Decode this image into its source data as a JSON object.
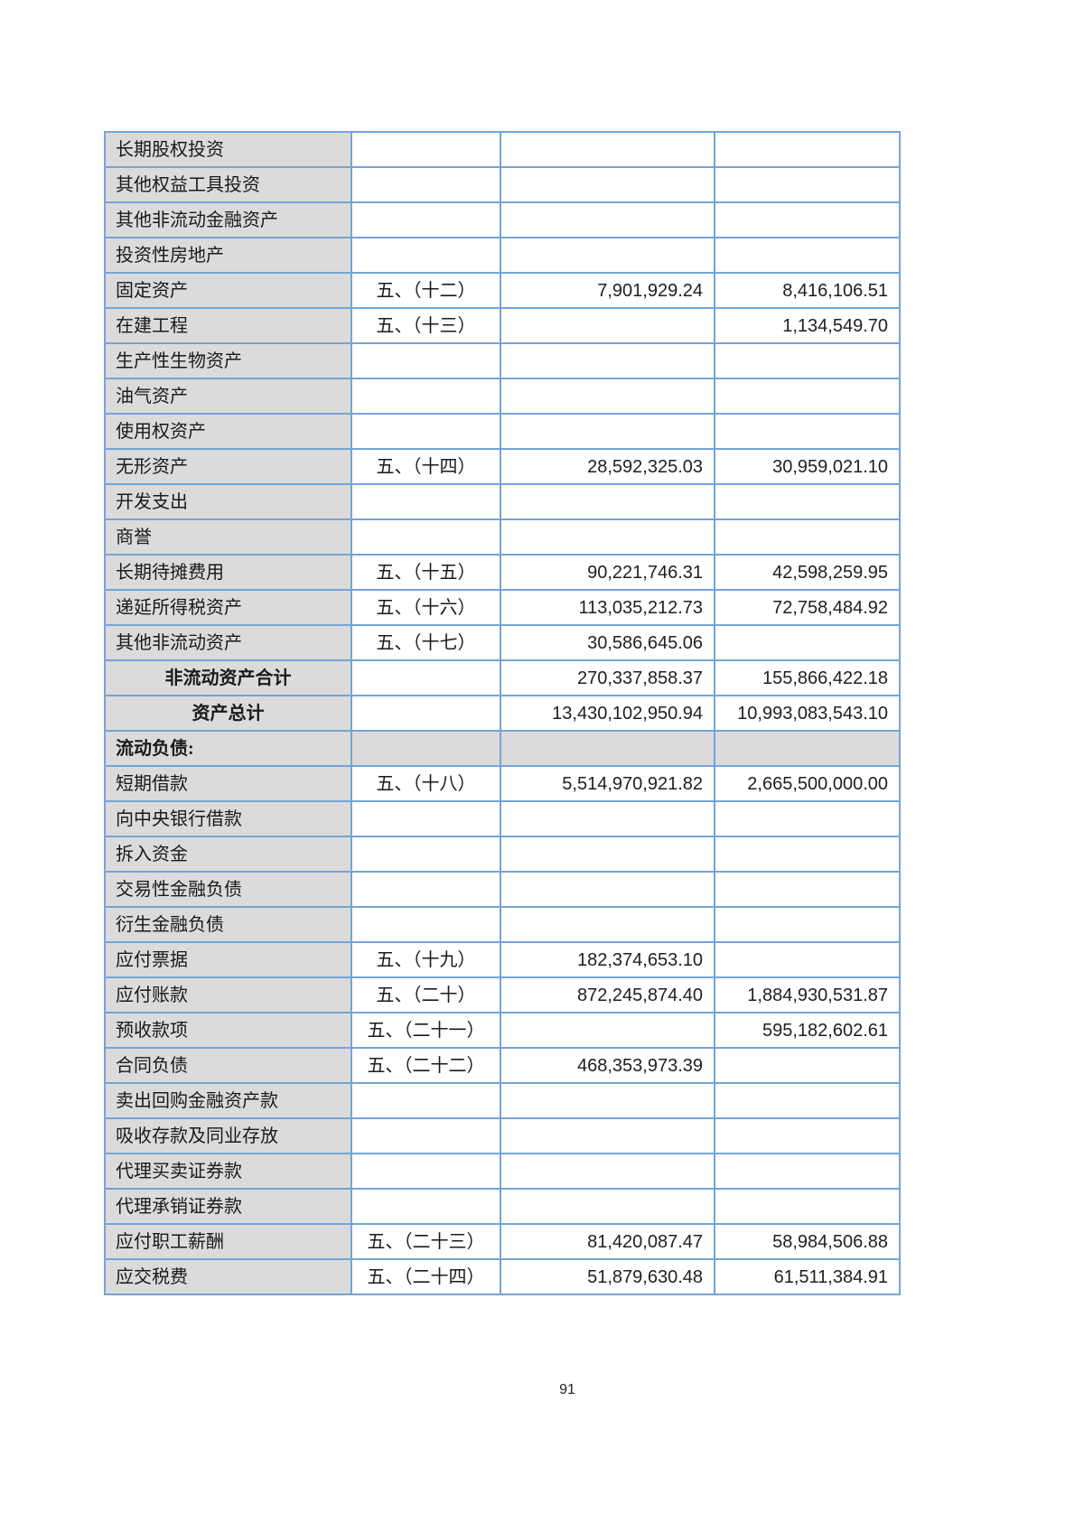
{
  "document": {
    "page_number": "91",
    "colors": {
      "cell_gray": "#dbdbdb",
      "grid_blue": "#74a4d6",
      "text": "#1a1a1a"
    },
    "table": {
      "columns": [
        "item",
        "note",
        "amount_current",
        "amount_prior"
      ],
      "rows": [
        {
          "style": "item",
          "label": "长期股权投资",
          "note": "",
          "current": "",
          "prior": ""
        },
        {
          "style": "item",
          "label": "其他权益工具投资",
          "note": "",
          "current": "",
          "prior": ""
        },
        {
          "style": "item",
          "label": "其他非流动金融资产",
          "note": "",
          "current": "",
          "prior": ""
        },
        {
          "style": "item",
          "label": "投资性房地产",
          "note": "",
          "current": "",
          "prior": ""
        },
        {
          "style": "item",
          "label": "固定资产",
          "note": "五、（十二）",
          "current": "7,901,929.24",
          "prior": "8,416,106.51"
        },
        {
          "style": "item",
          "label": "在建工程",
          "note": "五、（十三）",
          "current": "",
          "prior": "1,134,549.70"
        },
        {
          "style": "item",
          "label": "生产性生物资产",
          "note": "",
          "current": "",
          "prior": ""
        },
        {
          "style": "item",
          "label": "油气资产",
          "note": "",
          "current": "",
          "prior": ""
        },
        {
          "style": "item",
          "label": "使用权资产",
          "note": "",
          "current": "",
          "prior": ""
        },
        {
          "style": "item",
          "label": "无形资产",
          "note": "五、（十四）",
          "current": "28,592,325.03",
          "prior": "30,959,021.10"
        },
        {
          "style": "item",
          "label": "开发支出",
          "note": "",
          "current": "",
          "prior": ""
        },
        {
          "style": "item",
          "label": "商誉",
          "note": "",
          "current": "",
          "prior": ""
        },
        {
          "style": "item",
          "label": "长期待摊费用",
          "note": "五、（十五）",
          "current": "90,221,746.31",
          "prior": "42,598,259.95"
        },
        {
          "style": "item",
          "label": "递延所得税资产",
          "note": "五、（十六）",
          "current": "113,035,212.73",
          "prior": "72,758,484.92"
        },
        {
          "style": "item",
          "label": "其他非流动资产",
          "note": "五、（十七）",
          "current": "30,586,645.06",
          "prior": ""
        },
        {
          "style": "subtotal",
          "label": "非流动资产合计",
          "note": "",
          "current": "270,337,858.37",
          "prior": "155,866,422.18"
        },
        {
          "style": "subtotal",
          "label": "资产总计",
          "note": "",
          "current": "13,430,102,950.94",
          "prior": "10,993,083,543.10"
        },
        {
          "style": "section",
          "label": "流动负债:",
          "note": "",
          "current": "",
          "prior": ""
        },
        {
          "style": "item",
          "label": "短期借款",
          "note": "五、（十八）",
          "current": "5,514,970,921.82",
          "prior": "2,665,500,000.00"
        },
        {
          "style": "item",
          "label": "向中央银行借款",
          "note": "",
          "current": "",
          "prior": ""
        },
        {
          "style": "item",
          "label": "拆入资金",
          "note": "",
          "current": "",
          "prior": ""
        },
        {
          "style": "item",
          "label": "交易性金融负债",
          "note": "",
          "current": "",
          "prior": ""
        },
        {
          "style": "item",
          "label": "衍生金融负债",
          "note": "",
          "current": "",
          "prior": ""
        },
        {
          "style": "item",
          "label": "应付票据",
          "note": "五、（十九）",
          "current": "182,374,653.10",
          "prior": ""
        },
        {
          "style": "item",
          "label": "应付账款",
          "note": "五、（二十）",
          "current": "872,245,874.40",
          "prior": "1,884,930,531.87"
        },
        {
          "style": "item",
          "label": "预收款项",
          "note": "五、（二十一）",
          "current": "",
          "prior": "595,182,602.61"
        },
        {
          "style": "item",
          "label": "合同负债",
          "note": "五、（二十二）",
          "current": "468,353,973.39",
          "prior": ""
        },
        {
          "style": "item",
          "label": "卖出回购金融资产款",
          "note": "",
          "current": "",
          "prior": ""
        },
        {
          "style": "item",
          "label": "吸收存款及同业存放",
          "note": "",
          "current": "",
          "prior": ""
        },
        {
          "style": "item",
          "label": "代理买卖证券款",
          "note": "",
          "current": "",
          "prior": ""
        },
        {
          "style": "item",
          "label": "代理承销证券款",
          "note": "",
          "current": "",
          "prior": ""
        },
        {
          "style": "item",
          "label": "应付职工薪酬",
          "note": "五、（二十三）",
          "current": "81,420,087.47",
          "prior": "58,984,506.88"
        },
        {
          "style": "item",
          "label": "应交税费",
          "note": "五、（二十四）",
          "current": "51,879,630.48",
          "prior": "61,511,384.91"
        }
      ]
    }
  }
}
